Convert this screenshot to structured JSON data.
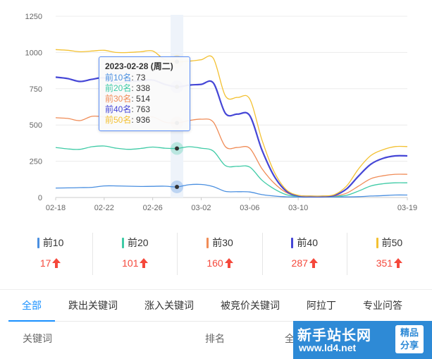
{
  "chart_data": {
    "type": "line",
    "x": [
      "02-18",
      "02-19",
      "02-20",
      "02-21",
      "02-22",
      "02-23",
      "02-24",
      "02-25",
      "02-26",
      "02-27",
      "02-28",
      "03-01",
      "03-02",
      "03-03",
      "03-04",
      "03-05",
      "03-06",
      "03-07",
      "03-08",
      "03-09",
      "03-10",
      "03-11",
      "03-12",
      "03-13",
      "03-14",
      "03-15",
      "03-16",
      "03-17",
      "03-18",
      "03-19"
    ],
    "x_tick_labels": [
      "02-18",
      "02-22",
      "02-26",
      "03-02",
      "03-06",
      "03-10",
      "03-19"
    ],
    "y_tick_labels": [
      "0",
      "250",
      "500",
      "750",
      "1000",
      "1250"
    ],
    "ylim": [
      0,
      1250
    ],
    "grid": true,
    "highlight_x": "02-28",
    "series": [
      {
        "name": "前10名",
        "color": "#4a8fe0",
        "values": [
          65,
          66,
          68,
          70,
          80,
          80,
          78,
          76,
          77,
          78,
          73,
          88,
          90,
          75,
          42,
          40,
          38,
          20,
          10,
          5,
          3,
          3,
          3,
          3,
          4,
          6,
          10,
          13,
          17,
          17
        ]
      },
      {
        "name": "前20名",
        "color": "#3fcba6",
        "values": [
          345,
          335,
          332,
          350,
          355,
          340,
          332,
          338,
          348,
          340,
          338,
          350,
          340,
          320,
          220,
          215,
          210,
          120,
          60,
          20,
          8,
          6,
          6,
          8,
          15,
          45,
          80,
          95,
          101,
          101
        ]
      },
      {
        "name": "前30名",
        "color": "#f08c57",
        "values": [
          550,
          545,
          530,
          560,
          555,
          540,
          535,
          545,
          555,
          520,
          514,
          530,
          540,
          520,
          350,
          345,
          340,
          200,
          100,
          35,
          10,
          6,
          6,
          10,
          30,
          80,
          130,
          150,
          160,
          160
        ]
      },
      {
        "name": "前40名",
        "color": "#4546d6",
        "values": [
          830,
          820,
          800,
          815,
          825,
          790,
          800,
          805,
          810,
          780,
          763,
          775,
          780,
          790,
          580,
          575,
          565,
          330,
          150,
          45,
          12,
          8,
          8,
          15,
          60,
          150,
          230,
          270,
          287,
          287
        ]
      },
      {
        "name": "前50名",
        "color": "#f3c132",
        "values": [
          1020,
          1015,
          1005,
          1010,
          1015,
          1000,
          1000,
          1005,
          1010,
          950,
          936,
          940,
          950,
          960,
          700,
          690,
          680,
          400,
          180,
          55,
          15,
          10,
          10,
          20,
          80,
          200,
          290,
          330,
          351,
          351
        ]
      }
    ]
  },
  "tooltip": {
    "title": "2023-02-28 (周二)",
    "rows": [
      {
        "label": "前10名",
        "value": ": 73",
        "color": "#4a8fe0"
      },
      {
        "label": "前20名",
        "value": ": 338",
        "color": "#3fcba6"
      },
      {
        "label": "前30名",
        "value": ": 514",
        "color": "#f08c57"
      },
      {
        "label": "前40名",
        "value": ": 763",
        "color": "#4546d6"
      },
      {
        "label": "前50名",
        "value": ": 936",
        "color": "#f3c132"
      }
    ]
  },
  "legend": [
    {
      "label": "前10",
      "value": "17",
      "color": "#4a8fe0"
    },
    {
      "label": "前20",
      "value": "101",
      "color": "#3fcba6"
    },
    {
      "label": "前30",
      "value": "160",
      "color": "#f08c57"
    },
    {
      "label": "前40",
      "value": "287",
      "color": "#4546d6"
    },
    {
      "label": "前50",
      "value": "351",
      "color": "#f3c132"
    }
  ],
  "tabs": [
    "全部",
    "跌出关键词",
    "涨入关键词",
    "被竞价关键词",
    "阿拉丁",
    "专业问答"
  ],
  "table_header": {
    "keyword": "关键词",
    "rank": "排名",
    "all": "全"
  },
  "watermark": {
    "main": "新手站长网",
    "url": "www.ld4.net",
    "badge_line1": "精品",
    "badge_line2": "分享"
  },
  "colors": {
    "accent": "#1890ff",
    "up": "#f5483b"
  },
  "icons": {
    "arrow": "arrow-up-icon"
  }
}
